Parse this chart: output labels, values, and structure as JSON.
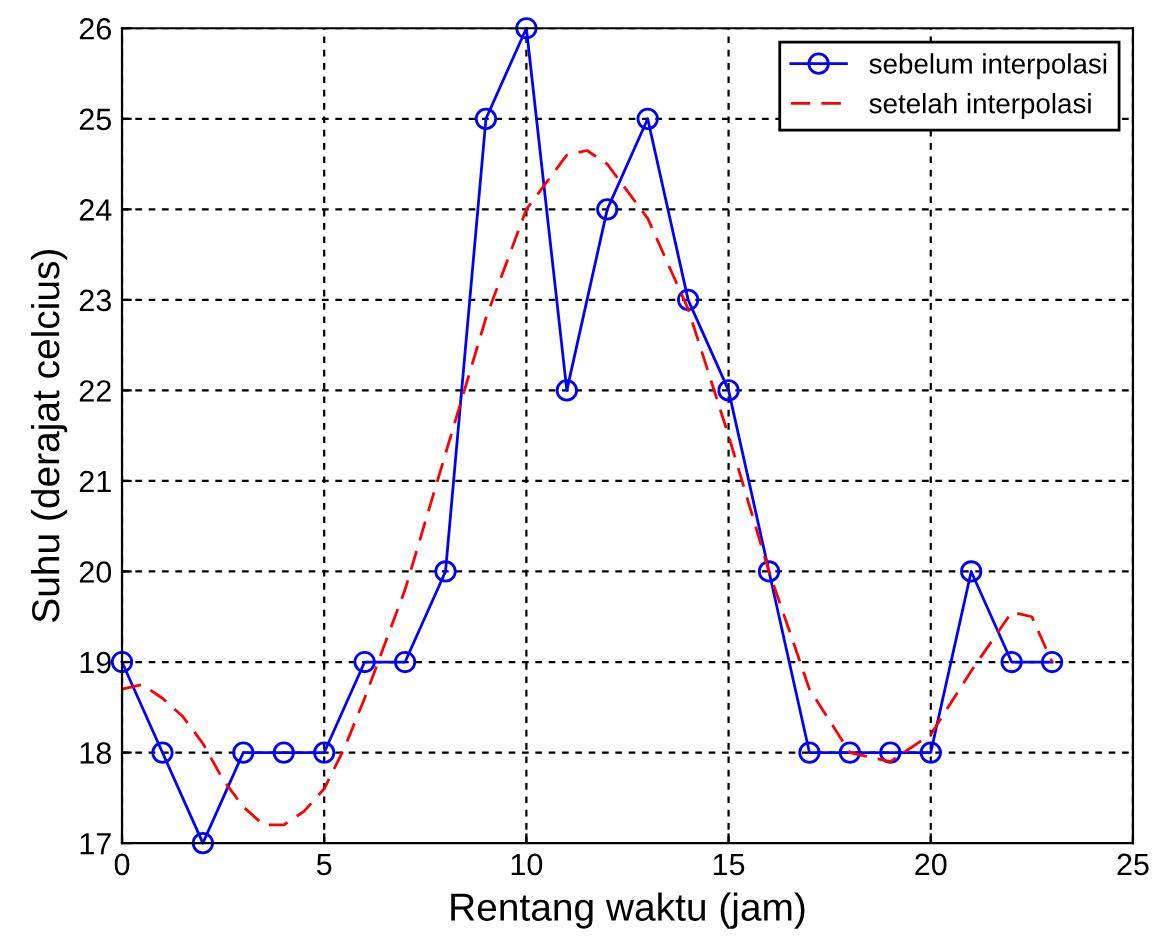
{
  "chart_data": {
    "type": "line",
    "xlabel": "Rentang waktu (jam)",
    "ylabel": "Suhu (derajat celcius)",
    "xlim": [
      0,
      25
    ],
    "xticks": [
      0,
      5,
      10,
      15,
      20,
      25
    ],
    "ylim": [
      17,
      26
    ],
    "yticks": [
      17,
      18,
      19,
      20,
      21,
      22,
      23,
      24,
      25,
      26
    ],
    "grid": true,
    "legend": "top right",
    "series": [
      {
        "name": "sebelum interpolasi",
        "color": "#0000ff",
        "marker": "circle",
        "line_style": "solid",
        "x": [
          0,
          1,
          2,
          3,
          4,
          5,
          6,
          7,
          8,
          9,
          10,
          11,
          12,
          13,
          14,
          15,
          16,
          17,
          18,
          19,
          20,
          21,
          22,
          23
        ],
        "values": [
          19,
          18,
          17,
          18,
          18,
          18,
          19,
          19,
          20,
          25,
          26,
          22,
          24,
          25,
          23,
          22,
          20,
          18,
          18,
          18,
          18,
          20,
          19,
          19
        ]
      },
      {
        "name": "setelah interpolasi",
        "color": "#ff0000",
        "marker": "none",
        "line_style": "dashed",
        "x": [
          0,
          0.5,
          1,
          1.5,
          2,
          2.5,
          3,
          3.5,
          4,
          4.5,
          5,
          5.5,
          6,
          7,
          8,
          9,
          10,
          11,
          11.5,
          12,
          13,
          14,
          15,
          16,
          17,
          18,
          19,
          20,
          21,
          22,
          22.5,
          23
        ],
        "values": [
          18.7,
          18.75,
          18.6,
          18.4,
          18.1,
          17.7,
          17.4,
          17.2,
          17.2,
          17.35,
          17.6,
          18.05,
          18.6,
          19.8,
          21.3,
          22.8,
          24.0,
          24.6,
          24.65,
          24.5,
          23.9,
          22.9,
          21.5,
          20.0,
          18.7,
          18.0,
          17.9,
          18.2,
          18.9,
          19.55,
          19.5,
          19.0
        ]
      }
    ]
  }
}
